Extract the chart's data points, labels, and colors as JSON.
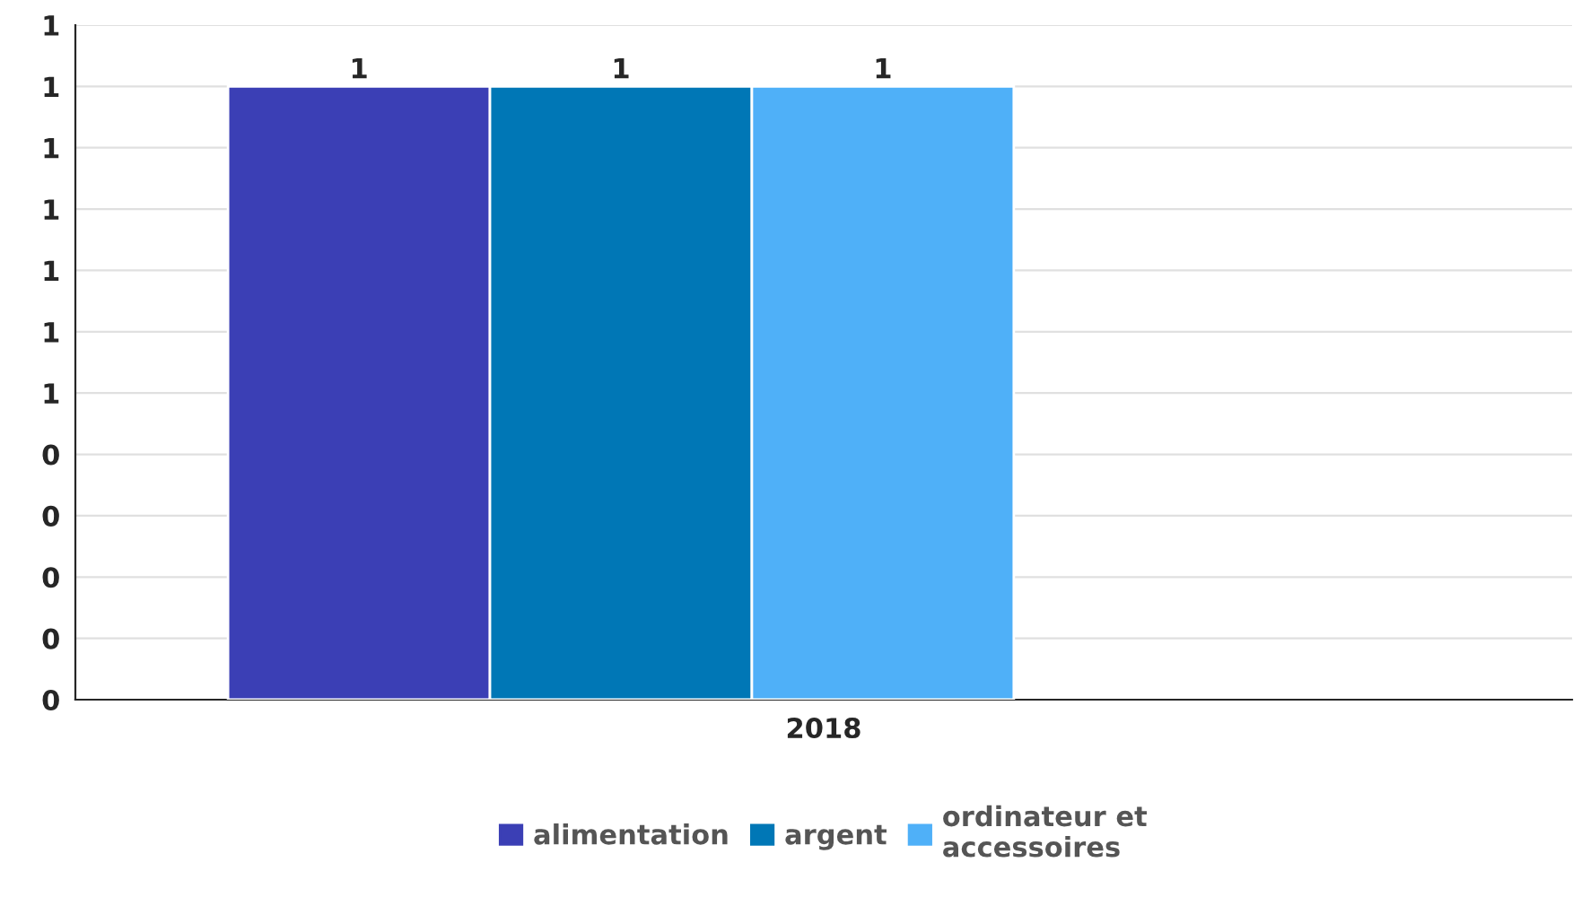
{
  "chart_data": {
    "type": "bar",
    "categories": [
      "2018"
    ],
    "series": [
      {
        "name": "alimentation",
        "color": "#3b3fb5",
        "values": [
          1
        ]
      },
      {
        "name": "argent",
        "color": "#0077b6",
        "values": [
          1
        ]
      },
      {
        "name": "ordinateur et\naccessoires",
        "color": "#4fb0f8",
        "values": [
          1
        ]
      }
    ],
    "ylim": [
      0,
      1.1
    ],
    "yticks": [
      0,
      {
        "value": 0.1,
        "label": "0"
      },
      {
        "value": 0.2,
        "label": "0"
      },
      {
        "value": 0.3,
        "label": "0"
      },
      {
        "value": 0.4,
        "label": "0"
      },
      {
        "value": 0.5,
        "label": "1"
      },
      {
        "value": 0.6,
        "label": "1"
      },
      {
        "value": 0.7,
        "label": "1"
      },
      {
        "value": 0.8,
        "label": "1"
      },
      {
        "value": 0.9,
        "label": "1"
      },
      1,
      {
        "value": 1.1,
        "label": "1"
      }
    ],
    "grid": "y",
    "legend": "bottom",
    "data_labels": true
  }
}
